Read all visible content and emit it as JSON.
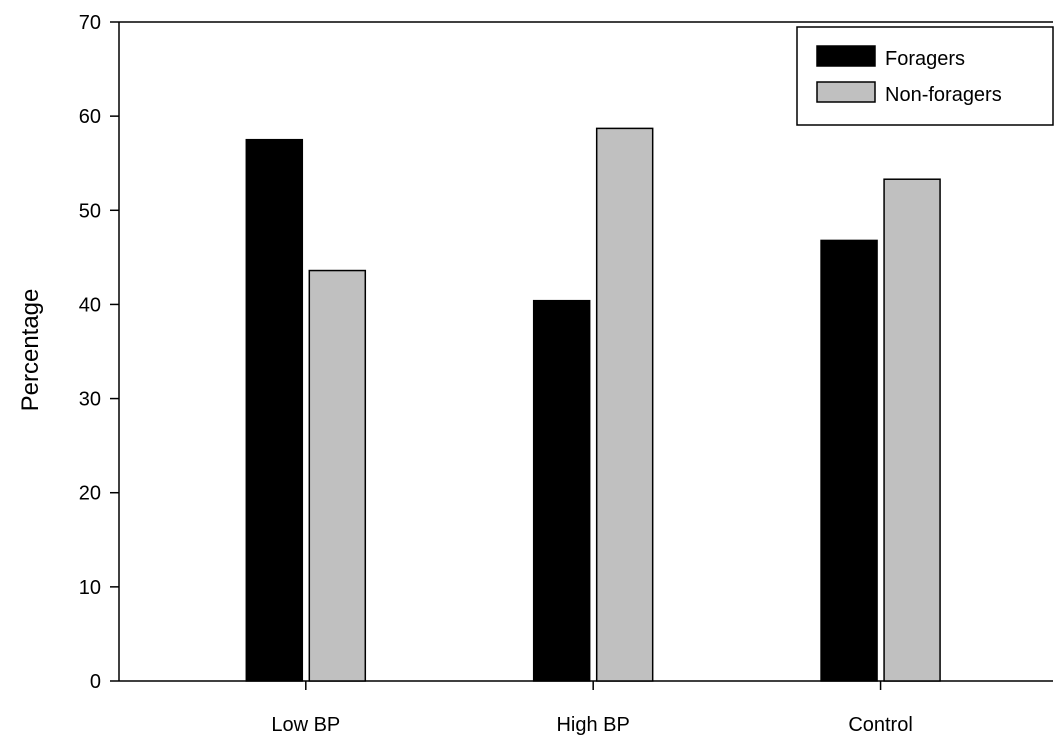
{
  "chart_data": {
    "type": "bar",
    "categories": [
      "Low BP",
      "High BP",
      "Control"
    ],
    "series": [
      {
        "name": "Foragers",
        "values": [
          57.5,
          40.4,
          46.8
        ],
        "color": "#000000"
      },
      {
        "name": "Non-foragers",
        "values": [
          43.6,
          58.7,
          53.3
        ],
        "color": "#c0c0c0"
      }
    ],
    "title": "",
    "xlabel": "",
    "ylabel": "Percentage",
    "ylim": [
      0,
      70
    ],
    "yticks": [
      0,
      10,
      20,
      30,
      40,
      50,
      60,
      70
    ],
    "grid": false,
    "legend_position": "top-right"
  }
}
